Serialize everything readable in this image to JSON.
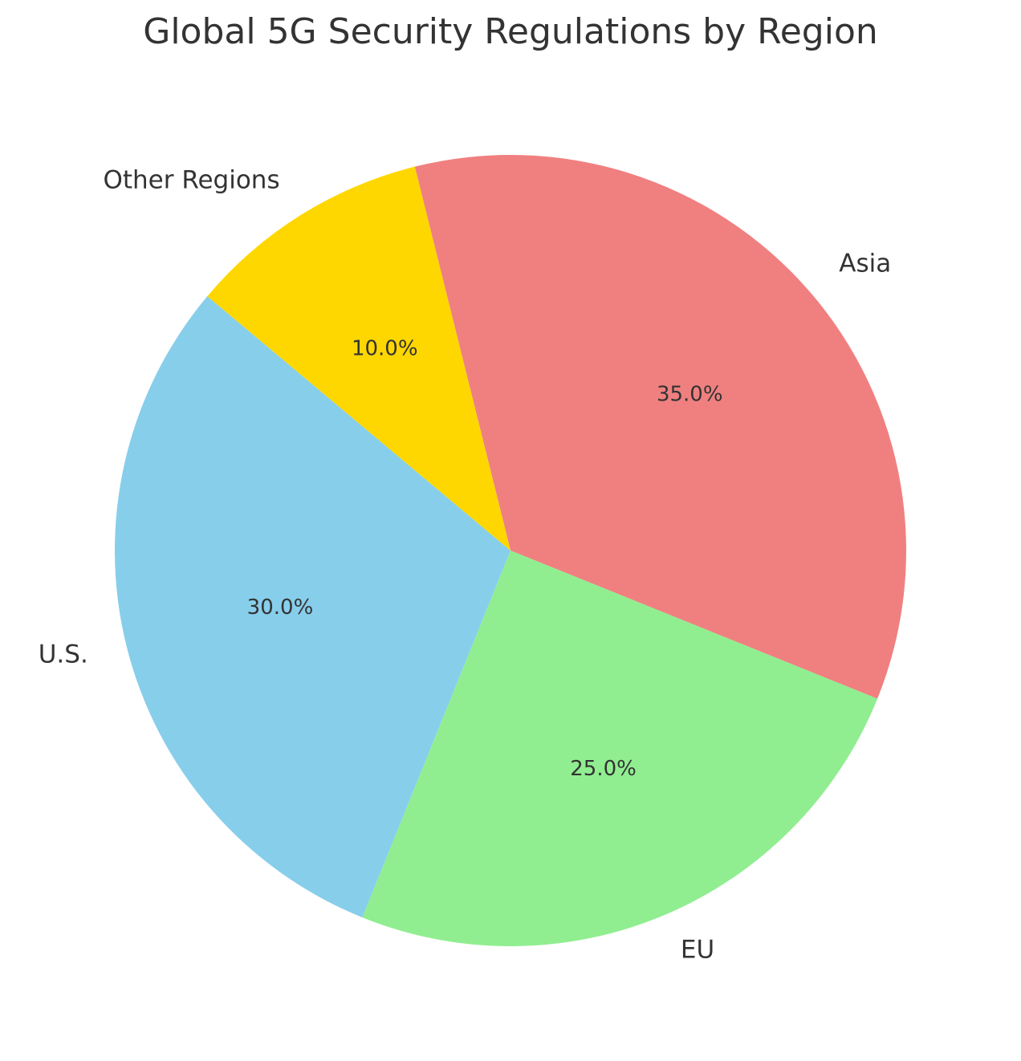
{
  "chart_data": {
    "type": "pie",
    "title": "Global 5G Security Regulations by Region",
    "categories": [
      "Asia",
      "EU",
      "U.S.",
      "Other Regions"
    ],
    "values": [
      35.0,
      25.0,
      30.0,
      10.0
    ],
    "percent_labels": [
      "35.0%",
      "25.0%",
      "30.0%",
      "10.0%"
    ],
    "colors": [
      "#F08080",
      "#90EE90",
      "#87CEEB",
      "#FFD700"
    ],
    "start_angle_deg": 104,
    "direction": "clockwise",
    "legend": "none"
  }
}
